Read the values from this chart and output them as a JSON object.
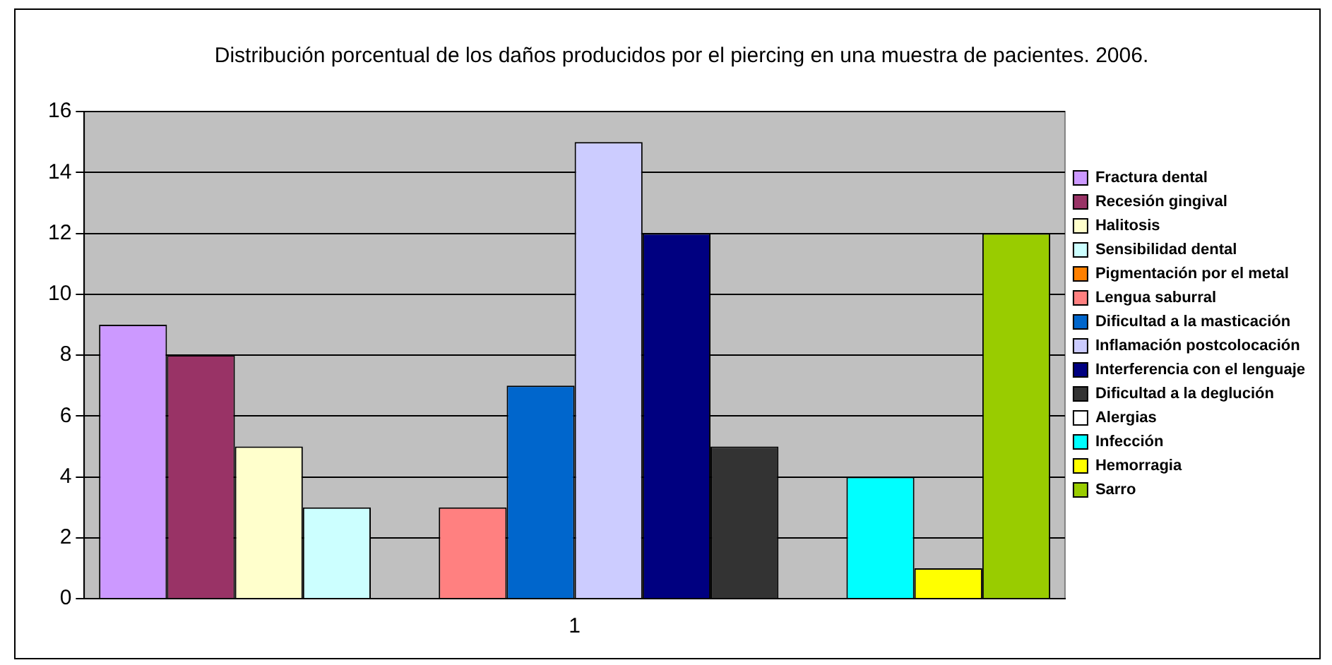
{
  "chart_data": {
    "type": "bar",
    "title": "Distribución porcentual de los daños producidos por el piercing en una muestra de pacientes. 2006.",
    "categories": [
      "1"
    ],
    "series": [
      {
        "name": "Fractura dental",
        "color": "#cc99ff",
        "values": [
          9
        ]
      },
      {
        "name": "Recesión gingival",
        "color": "#993366",
        "values": [
          8
        ]
      },
      {
        "name": "Halitosis",
        "color": "#ffffcc",
        "values": [
          5
        ]
      },
      {
        "name": "Sensibilidad dental",
        "color": "#ccffff",
        "values": [
          3
        ]
      },
      {
        "name": "Pigmentación por el metal",
        "color": "#ff8000",
        "values": [
          0
        ]
      },
      {
        "name": "Lengua saburral",
        "color": "#ff8080",
        "values": [
          3
        ]
      },
      {
        "name": "Dificultad a la masticación",
        "color": "#0066cc",
        "values": [
          7
        ]
      },
      {
        "name": "Inflamación postcolocación",
        "color": "#ccccff",
        "values": [
          15
        ]
      },
      {
        "name": "Interferencia con el lenguaje",
        "color": "#000080",
        "values": [
          12
        ]
      },
      {
        "name": "Dificultad a la deglución",
        "color": "#333333",
        "values": [
          5
        ]
      },
      {
        "name": "Alergias",
        "color": "#ffffff",
        "values": [
          0
        ]
      },
      {
        "name": "Infección",
        "color": "#00ffff",
        "values": [
          4
        ]
      },
      {
        "name": "Hemorragia",
        "color": "#ffff00",
        "values": [
          1
        ]
      },
      {
        "name": "Sarro",
        "color": "#99cc00",
        "values": [
          12
        ]
      }
    ],
    "ylim": [
      0,
      16
    ],
    "yticks": [
      0,
      2,
      4,
      6,
      8,
      10,
      12,
      14,
      16
    ],
    "grid": "y",
    "legend": "right"
  }
}
